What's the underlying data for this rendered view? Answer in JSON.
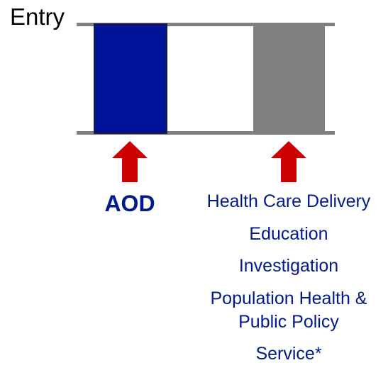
{
  "entry_label": "Entry",
  "aod_label": "AOD",
  "destinations": [
    "Health Care Delivery",
    "Education",
    "Investigation",
    "Population Health & Public Policy",
    "Service*"
  ],
  "colors": {
    "aod_block": "#001399",
    "neutral_block": "#808080",
    "arrow": "#cc0000",
    "text_blue": "#001a8c",
    "rail": "#808080"
  },
  "icons": {
    "aod_arrow": "up-arrow-icon",
    "destination_arrow": "up-arrow-icon"
  }
}
